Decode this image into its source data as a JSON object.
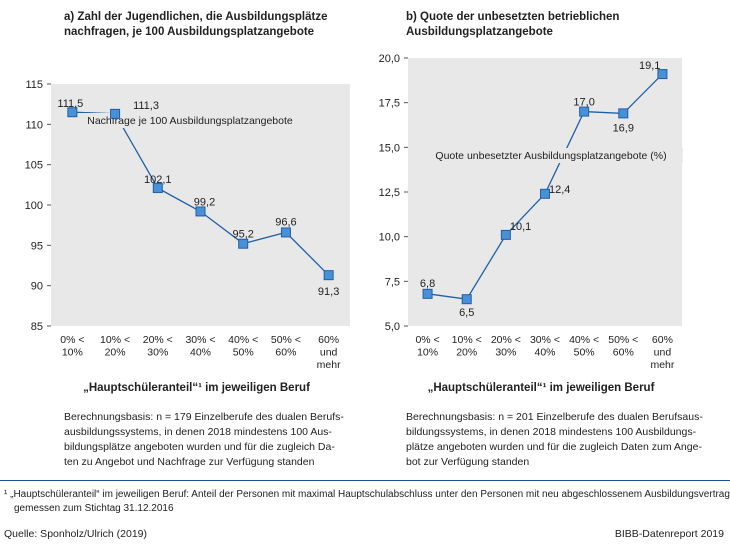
{
  "chart_data": [
    {
      "type": "line",
      "title": "a) Zahl der Jugendlichen, die Ausbildungsplätze nachfragen, je 100 Ausbildungsplatzangebote",
      "title_lines": [
        "a) Zahl der Jugendlichen, die Ausbildungsplätze",
        "nachfragen, je 100 Ausbildungsplatzangebote"
      ],
      "categories": [
        [
          "0% <",
          "10%"
        ],
        [
          "10% <",
          "20%"
        ],
        [
          "20% <",
          "30%"
        ],
        [
          "30% <",
          "40%"
        ],
        [
          "40% <",
          "50%"
        ],
        [
          "50% <",
          "60%"
        ],
        [
          "60%",
          "und",
          "mehr"
        ]
      ],
      "series": [
        {
          "name": "Nachfrage je 100 Ausbildungsplatzangebote",
          "values": [
            111.5,
            111.3,
            102.1,
            99.2,
            95.2,
            96.6,
            91.3
          ]
        }
      ],
      "data_labels": [
        "111,5",
        "111,3",
        "102,1",
        "99,2",
        "95,2",
        "96,6",
        "91,3"
      ],
      "yticks": [
        85,
        90,
        95,
        100,
        105,
        110,
        115
      ],
      "ytick_labels": [
        "85",
        "90",
        "95",
        "100",
        "105",
        "110",
        "115"
      ],
      "ylim": [
        85,
        115
      ],
      "xlabel": "„Hauptschüleranteil“¹ im jeweiligen Beruf",
      "ylabel": "",
      "note_lines": [
        "Berechnungsbasis: n = 179 Einzelberufe des dualen Berufs-",
        "ausbildungssystems, in denen 2018 mindestens 100 Aus-",
        "bildungsplätze angeboten wurden und für die zugleich Da-",
        "ten zu Angebot und Nachfrage zur Verfügung standen"
      ]
    },
    {
      "type": "line",
      "title": "b) Quote der unbesetzten betrieblichen Ausbildungsplatzangebote",
      "title_lines": [
        "b) Quote der unbesetzten betrieblichen",
        "Ausbildungsplatzangebote"
      ],
      "categories": [
        [
          "0% <",
          "10%"
        ],
        [
          "10% <",
          "20%"
        ],
        [
          "20% <",
          "30%"
        ],
        [
          "30% <",
          "40%"
        ],
        [
          "40% <",
          "50%"
        ],
        [
          "50% <",
          "60%"
        ],
        [
          "60%",
          "und",
          "mehr"
        ]
      ],
      "series": [
        {
          "name": "Quote unbesetzter Ausbildungsplatzangebote (%)",
          "values": [
            6.8,
            6.5,
            10.1,
            12.4,
            17.0,
            16.9,
            19.1
          ]
        }
      ],
      "data_labels": [
        "6,8",
        "6,5",
        "10,1",
        "12,4",
        "17,0",
        "16,9",
        "19,1"
      ],
      "yticks": [
        5.0,
        7.5,
        10.0,
        12.5,
        15.0,
        17.5,
        20.0
      ],
      "ytick_labels": [
        "5,0",
        "7,5",
        "10,0",
        "12,5",
        "15,0",
        "17,5",
        "20,0"
      ],
      "ylim": [
        5,
        20
      ],
      "xlabel": "„Hauptschüleranteil“¹ im jeweiligen Beruf",
      "ylabel": "",
      "note_lines": [
        "Berechnungsbasis: n = 201 Einzelberufe des dualen Berufsaus-",
        "bildungssystems, in denen 2018 mindestens 100 Ausbildungs-",
        "plätze angeboten wurden und für die zugleich Daten zum Ange-",
        "bot zur Verfügung standen"
      ]
    }
  ],
  "footnote_lines": [
    "¹ „Hauptschüleranteil“ im jeweiligen Beruf:  Anteil der Personen mit maximal Hauptschulabschluss unter den Personen mit neu abgeschlossenem Ausbildungsvertrag,",
    "gemessen zum Stichtag 31.12.2016"
  ],
  "source": "Quelle: Sponholz/Ulrich (2019)",
  "brand": "BIBB-Datenreport 2019",
  "colors": {
    "plot_bg": "#e8e8e8",
    "line": "#1f5fa6",
    "marker": "#4a90d9",
    "marker_stroke": "#1f5fa6",
    "rule": "#1a4f8f"
  }
}
